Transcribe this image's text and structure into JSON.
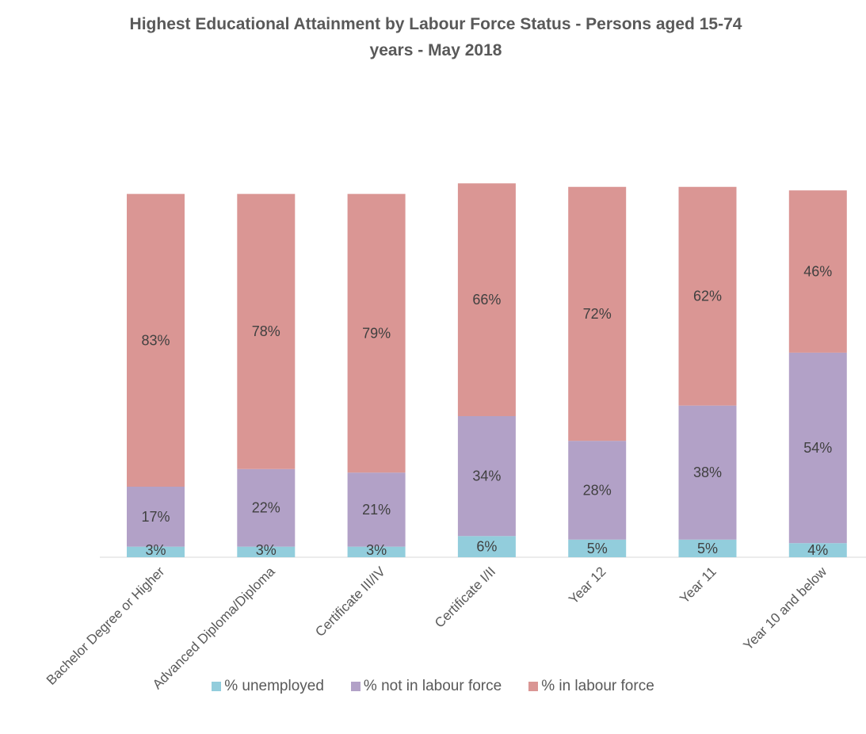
{
  "chart_data": {
    "type": "bar",
    "stacked": true,
    "title": "Highest Educational Attainment by Labour Force Status - Persons aged 15-74 years - May 2018",
    "categories": [
      "Bachelor Degree or Higher",
      "Advanced Diploma/Diploma",
      "Certificate III/IV",
      "Certificate I/II",
      "Year 12",
      "Year 11",
      "Year 10 and below"
    ],
    "series": [
      {
        "name": "% unemployed",
        "color": "#92cddc",
        "values": [
          3,
          3,
          3,
          6,
          5,
          5,
          4
        ],
        "labels": [
          "3%",
          "3%",
          "3%",
          "6%",
          "5%",
          "5%",
          "4%"
        ]
      },
      {
        "name": "% not in labour force",
        "color": "#b2a1c7",
        "values": [
          17,
          22,
          21,
          34,
          28,
          38,
          54
        ],
        "labels": [
          "17%",
          "22%",
          "21%",
          "34%",
          "28%",
          "38%",
          "54%"
        ]
      },
      {
        "name": "% in labour force",
        "color": "#da9694",
        "values": [
          83,
          78,
          79,
          66,
          72,
          62,
          46
        ],
        "labels": [
          "83%",
          "78%",
          "79%",
          "66%",
          "72%",
          "62%",
          "46%"
        ]
      }
    ],
    "legend_position": "bottom",
    "grid": false
  }
}
